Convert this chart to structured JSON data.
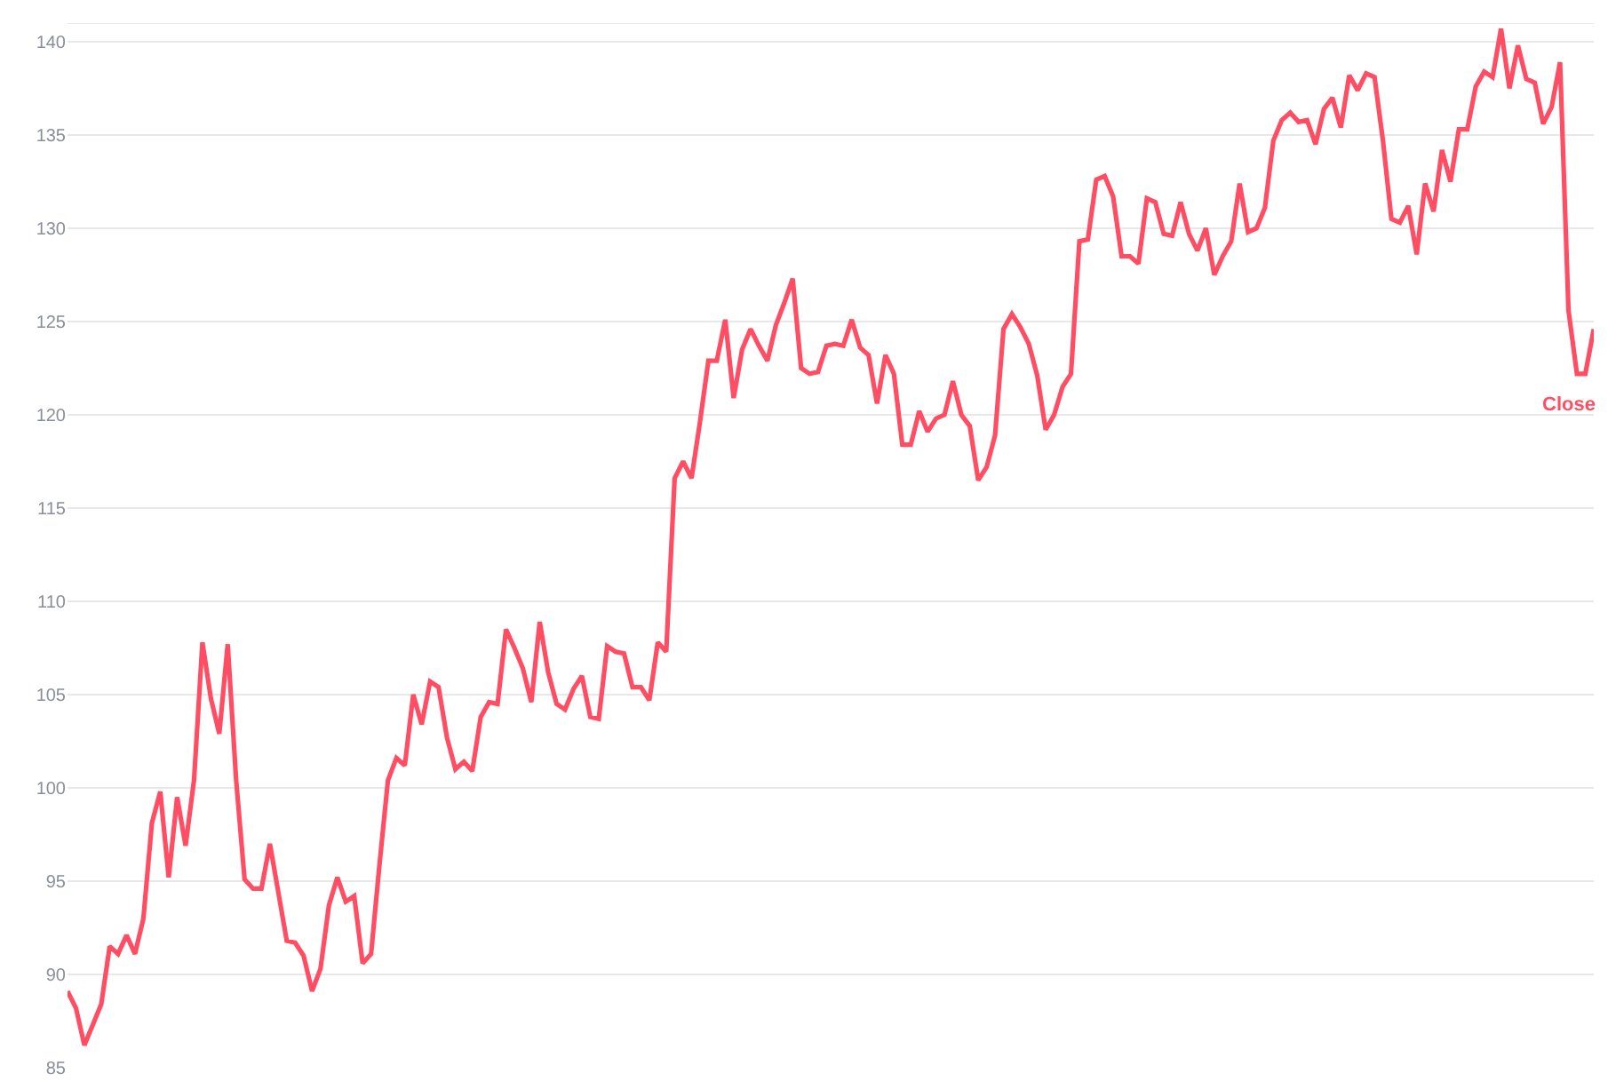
{
  "chart_data": {
    "type": "line",
    "categories": [
      null,
      null,
      null,
      null,
      null,
      null,
      null,
      null,
      null,
      null,
      null,
      null,
      null,
      null,
      null,
      null,
      null,
      null,
      null,
      null,
      null,
      null,
      null,
      null,
      null,
      null,
      null,
      null,
      null,
      null,
      null,
      null,
      null,
      null,
      null,
      null,
      null,
      null,
      null,
      null,
      null,
      null,
      null,
      null,
      null,
      null,
      null,
      null,
      null,
      null,
      null,
      null,
      null,
      null,
      null,
      null,
      null,
      null,
      null,
      null,
      null,
      null,
      null,
      null,
      null,
      null,
      null,
      null,
      null,
      null,
      null,
      null,
      null,
      null,
      null,
      null,
      null,
      null,
      null,
      null,
      null,
      null,
      null,
      null,
      null,
      null,
      null,
      null,
      null,
      null,
      null,
      null,
      null,
      null,
      null,
      null,
      null,
      null,
      null,
      null,
      null,
      null,
      null,
      null,
      null,
      null,
      null,
      null,
      null,
      null,
      null,
      null,
      null,
      null,
      null,
      null,
      null,
      null,
      null,
      null,
      null,
      null,
      null,
      null,
      null,
      null,
      null,
      null,
      null,
      null,
      null,
      null,
      null,
      null,
      null,
      null,
      null,
      null,
      null,
      null,
      null,
      null,
      null,
      null,
      null,
      null,
      null,
      null,
      null,
      null,
      null,
      null,
      null,
      null,
      null,
      null,
      null,
      null,
      null,
      null,
      null,
      null,
      null,
      null,
      null,
      null,
      null,
      null,
      null,
      null,
      null,
      null,
      null,
      null,
      null,
      null,
      null,
      null,
      null,
      null,
      null,
      null
    ],
    "series": [
      {
        "name": "Close",
        "color": "#ff4d64",
        "values": [
          89.1,
          88.2,
          86.2,
          87.3,
          88.4,
          91.5,
          91.1,
          92.1,
          91.1,
          93.0,
          98.1,
          99.8,
          95.2,
          99.5,
          96.9,
          100.4,
          107.8,
          104.8,
          102.9,
          107.7,
          100.4,
          95.1,
          94.6,
          94.6,
          97.0,
          94.4,
          91.8,
          91.7,
          91.0,
          89.1,
          90.3,
          93.7,
          95.2,
          93.9,
          94.2,
          90.6,
          91.1,
          95.9,
          100.4,
          101.6,
          101.2,
          105.0,
          103.4,
          105.7,
          105.4,
          102.7,
          101.0,
          101.4,
          100.9,
          103.8,
          104.6,
          104.5,
          108.5,
          107.5,
          106.4,
          104.6,
          108.9,
          106.2,
          104.5,
          104.2,
          105.3,
          106.0,
          103.8,
          103.7,
          107.6,
          107.3,
          107.2,
          105.4,
          105.4,
          104.7,
          107.8,
          107.3,
          116.6,
          117.5,
          116.6,
          119.6,
          122.9,
          122.9,
          125.1,
          120.9,
          123.5,
          124.6,
          123.7,
          122.9,
          124.8,
          126.0,
          127.3,
          122.5,
          122.2,
          122.3,
          123.7,
          123.8,
          123.7,
          125.1,
          123.6,
          123.2,
          120.6,
          123.2,
          122.2,
          118.4,
          118.4,
          120.2,
          119.1,
          119.8,
          120.0,
          121.8,
          120.0,
          119.4,
          116.5,
          117.2,
          118.9,
          124.6,
          125.4,
          124.7,
          123.8,
          122.1,
          119.2,
          120.0,
          121.5,
          122.2,
          129.3,
          129.4,
          132.6,
          132.8,
          131.7,
          128.5,
          128.5,
          128.1,
          131.6,
          131.4,
          129.7,
          129.6,
          131.4,
          129.7,
          128.8,
          130.0,
          127.5,
          128.5,
          129.3,
          132.4,
          129.8,
          130.0,
          131.1,
          134.7,
          135.8,
          136.2,
          135.7,
          135.8,
          134.5,
          136.4,
          137.0,
          135.4,
          138.2,
          137.4,
          138.3,
          138.1,
          134.7,
          130.5,
          130.3,
          131.2,
          128.6,
          132.4,
          130.9,
          134.2,
          132.5,
          135.3,
          135.3,
          137.6,
          138.4,
          138.1,
          140.7,
          137.5,
          139.8,
          138.0,
          137.8,
          135.6,
          136.5,
          138.9,
          125.6,
          122.2,
          122.2,
          124.6
        ]
      }
    ],
    "ylim": [
      85,
      141
    ],
    "yticks": [
      85,
      90,
      95,
      100,
      105,
      110,
      115,
      120,
      125,
      130,
      135,
      140
    ],
    "grid": "y",
    "legend": false,
    "tick_labels": "y",
    "marker": "none",
    "line_style": "solid"
  }
}
